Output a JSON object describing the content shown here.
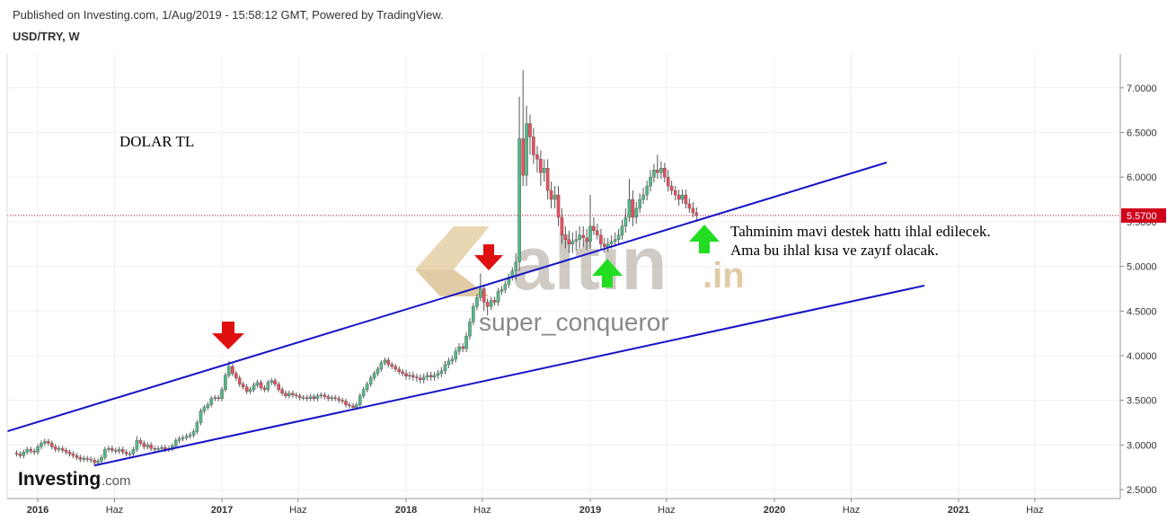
{
  "chart_data": {
    "type": "candlestick",
    "source": "Published on Investing.com, 1/Aug/2019 - 15:58:12 GMT, Powered by TradingView.",
    "title": "USD/TRY, W",
    "annotation_left": "DOLAR TL",
    "annotation_lines": [
      "Tahminim mavi destek hattı ihlal edilecek.",
      "Ama bu ihlal kısa ve zayıf olacak."
    ],
    "watermark_brand": "altın",
    "watermark_tld": ".in",
    "watermark_user": "super_conqueror",
    "logo_main": "Investing",
    "logo_tld": ".com",
    "up_color": "#53b987",
    "down_color": "#eb4d5c",
    "xlim": [
      2015.834,
      2021.878
    ],
    "ylim": [
      2.4,
      7.38
    ],
    "grid": true,
    "xticks": [
      2016,
      {
        "value": 2016.417,
        "label": "Haz"
      },
      2017,
      {
        "value": 2017.414,
        "label": "Haz"
      },
      2018,
      {
        "value": 2018.414,
        "label": "Haz"
      },
      2019,
      {
        "value": 2019.414,
        "label": "Haz"
      },
      2020,
      {
        "value": 2020.417,
        "label": "Haz"
      },
      2021,
      {
        "value": 2021.414,
        "label": "Haz"
      }
    ],
    "yticks": [
      {
        "value": 2.5,
        "label": "2.5000"
      },
      {
        "value": 3,
        "label": "3.0000"
      },
      {
        "value": 3.5,
        "label": "3.5000"
      },
      {
        "value": 4,
        "label": "4.0000"
      },
      {
        "value": 4.5,
        "label": "4.5000"
      },
      {
        "value": 5,
        "label": "5.0000"
      },
      {
        "value": 5.5,
        "label": "5.5000"
      },
      {
        "value": 6,
        "label": "6.0000"
      },
      {
        "value": 6.5,
        "label": "6.5000"
      },
      {
        "value": 7,
        "label": "7.0000"
      }
    ],
    "last_price": {
      "value": 5.57,
      "label": "5.5700"
    },
    "last_price_color": "#d0021b",
    "trendlines": [
      {
        "x": [
          2015.834,
          2020.61
        ],
        "y": [
          3.153,
          6.164
        ],
        "color": "#1414c8"
      },
      {
        "x": [
          2016.307,
          2020.815
        ],
        "y": [
          2.77,
          4.785
        ],
        "color": "#1414c8"
      }
    ],
    "x": [
      2015.885,
      2015.904,
      2015.923,
      2015.942,
      2015.962,
      2015.981,
      2016,
      2016.019,
      2016.038,
      2016.058,
      2016.077,
      2016.096,
      2016.115,
      2016.135,
      2016.154,
      2016.173,
      2016.192,
      2016.212,
      2016.231,
      2016.25,
      2016.269,
      2016.288,
      2016.308,
      2016.327,
      2016.346,
      2016.365,
      2016.385,
      2016.404,
      2016.423,
      2016.442,
      2016.462,
      2016.481,
      2016.5,
      2016.519,
      2016.538,
      2016.558,
      2016.577,
      2016.596,
      2016.615,
      2016.635,
      2016.654,
      2016.673,
      2016.692,
      2016.712,
      2016.731,
      2016.75,
      2016.769,
      2016.788,
      2016.808,
      2016.827,
      2016.846,
      2016.865,
      2016.885,
      2016.904,
      2016.923,
      2016.942,
      2016.962,
      2016.981,
      2017,
      2017.019,
      2017.038,
      2017.058,
      2017.077,
      2017.096,
      2017.115,
      2017.135,
      2017.154,
      2017.173,
      2017.192,
      2017.212,
      2017.231,
      2017.25,
      2017.269,
      2017.288,
      2017.308,
      2017.327,
      2017.346,
      2017.365,
      2017.385,
      2017.404,
      2017.423,
      2017.442,
      2017.462,
      2017.481,
      2017.5,
      2017.519,
      2017.538,
      2017.558,
      2017.577,
      2017.596,
      2017.615,
      2017.635,
      2017.654,
      2017.673,
      2017.692,
      2017.712,
      2017.731,
      2017.75,
      2017.769,
      2017.788,
      2017.808,
      2017.827,
      2017.846,
      2017.865,
      2017.885,
      2017.904,
      2017.923,
      2017.942,
      2017.962,
      2017.981,
      2018,
      2018.019,
      2018.038,
      2018.058,
      2018.077,
      2018.096,
      2018.115,
      2018.135,
      2018.154,
      2018.173,
      2018.192,
      2018.212,
      2018.231,
      2018.25,
      2018.269,
      2018.288,
      2018.308,
      2018.327,
      2018.346,
      2018.365,
      2018.385,
      2018.404,
      2018.423,
      2018.442,
      2018.462,
      2018.481,
      2018.5,
      2018.519,
      2018.538,
      2018.558,
      2018.577,
      2018.596,
      2018.615,
      2018.635,
      2018.654,
      2018.673,
      2018.692,
      2018.712,
      2018.731,
      2018.75,
      2018.769,
      2018.788,
      2018.808,
      2018.827,
      2018.846,
      2018.865,
      2018.885,
      2018.904,
      2018.923,
      2018.942,
      2018.962,
      2018.981,
      2019,
      2019.019,
      2019.038,
      2019.058,
      2019.077,
      2019.096,
      2019.115,
      2019.135,
      2019.154,
      2019.173,
      2019.192,
      2019.212,
      2019.231,
      2019.25,
      2019.269,
      2019.288,
      2019.308,
      2019.327,
      2019.346,
      2019.365,
      2019.385,
      2019.404,
      2019.423,
      2019.442,
      2019.462,
      2019.481,
      2019.5,
      2019.519,
      2019.538,
      2019.558,
      2019.577
    ],
    "open": [
      2.91,
      2.9,
      2.88,
      2.92,
      2.95,
      2.93,
      2.92,
      2.98,
      3.02,
      3.04,
      3.02,
      2.98,
      2.95,
      2.96,
      2.94,
      2.92,
      2.9,
      2.88,
      2.86,
      2.84,
      2.85,
      2.84,
      2.83,
      2.8,
      2.82,
      2.86,
      2.95,
      2.96,
      2.94,
      2.93,
      2.95,
      2.92,
      2.9,
      2.9,
      2.95,
      3.05,
      3.02,
      2.98,
      3.0,
      2.96,
      2.95,
      2.96,
      2.97,
      2.95,
      2.96,
      2.99,
      3.05,
      3.07,
      3.08,
      3.1,
      3.11,
      3.15,
      3.25,
      3.38,
      3.42,
      3.45,
      3.52,
      3.53,
      3.52,
      3.62,
      3.78,
      3.88,
      3.8,
      3.75,
      3.68,
      3.65,
      3.6,
      3.62,
      3.67,
      3.7,
      3.64,
      3.62,
      3.7,
      3.72,
      3.68,
      3.62,
      3.58,
      3.55,
      3.58,
      3.56,
      3.55,
      3.53,
      3.53,
      3.52,
      3.54,
      3.52,
      3.55,
      3.56,
      3.54,
      3.52,
      3.53,
      3.52,
      3.5,
      3.49,
      3.45,
      3.44,
      3.42,
      3.45,
      3.55,
      3.62,
      3.68,
      3.75,
      3.8,
      3.85,
      3.92,
      3.95,
      3.9,
      3.88,
      3.85,
      3.82,
      3.8,
      3.77,
      3.78,
      3.76,
      3.75,
      3.73,
      3.76,
      3.78,
      3.76,
      3.78,
      3.8,
      3.83,
      3.9,
      3.94,
      3.96,
      4.05,
      4.1,
      4.08,
      4.22,
      4.38,
      4.55,
      4.65,
      4.75,
      4.6,
      4.55,
      4.62,
      4.6,
      4.72,
      4.74,
      4.8,
      4.88,
      4.95,
      5.05,
      6.43,
      6.02,
      6.6,
      6.45,
      6.25,
      6.2,
      6.05,
      6.1,
      5.85,
      5.75,
      5.8,
      5.55,
      5.35,
      5.3,
      5.25,
      5.28,
      5.3,
      5.35,
      5.32,
      5.28,
      5.45,
      5.4,
      5.35,
      5.25,
      5.22,
      5.25,
      5.28,
      5.3,
      5.35,
      5.45,
      5.55,
      5.75,
      5.55,
      5.65,
      5.75,
      5.8,
      5.9,
      6.0,
      6.08,
      6.05,
      6.1,
      6.0,
      5.9,
      5.85,
      5.8,
      5.75,
      5.8,
      5.7,
      5.65,
      5.6
    ],
    "high": [
      2.94,
      2.93,
      2.95,
      2.98,
      2.98,
      2.96,
      3.01,
      3.05,
      3.07,
      3.07,
      3.05,
      3.01,
      2.99,
      2.99,
      2.97,
      2.95,
      2.93,
      2.91,
      2.89,
      2.88,
      2.88,
      2.87,
      2.86,
      2.85,
      2.89,
      2.98,
      2.99,
      2.99,
      2.97,
      2.98,
      2.98,
      2.95,
      2.93,
      2.98,
      3.1,
      3.08,
      3.05,
      3.03,
      3.03,
      2.99,
      2.99,
      3.0,
      3.0,
      2.99,
      3.02,
      3.08,
      3.1,
      3.11,
      3.13,
      3.14,
      3.18,
      3.28,
      3.41,
      3.45,
      3.48,
      3.55,
      3.56,
      3.56,
      3.65,
      3.81,
      3.94,
      3.91,
      3.83,
      3.78,
      3.71,
      3.68,
      3.65,
      3.7,
      3.73,
      3.73,
      3.67,
      3.73,
      3.75,
      3.75,
      3.71,
      3.65,
      3.61,
      3.61,
      3.61,
      3.59,
      3.58,
      3.56,
      3.56,
      3.57,
      3.57,
      3.58,
      3.59,
      3.59,
      3.57,
      3.56,
      3.56,
      3.55,
      3.53,
      3.52,
      3.48,
      3.47,
      3.48,
      3.58,
      3.65,
      3.71,
      3.78,
      3.83,
      3.88,
      3.95,
      3.98,
      3.98,
      3.93,
      3.91,
      3.88,
      3.85,
      3.84,
      3.82,
      3.82,
      3.8,
      3.79,
      3.8,
      3.82,
      3.82,
      3.82,
      3.84,
      3.87,
      3.94,
      3.98,
      4.0,
      4.09,
      4.14,
      4.14,
      4.26,
      4.42,
      4.59,
      4.69,
      4.92,
      4.79,
      4.64,
      4.66,
      4.66,
      4.76,
      4.78,
      4.84,
      4.92,
      4.99,
      5.15,
      6.9,
      7.2,
      6.8,
      6.7,
      6.55,
      6.35,
      6.3,
      6.2,
      6.2,
      5.95,
      5.9,
      5.9,
      5.65,
      5.45,
      5.4,
      5.38,
      5.4,
      5.45,
      5.45,
      5.42,
      5.8,
      5.55,
      5.48,
      5.42,
      5.32,
      5.32,
      5.35,
      5.38,
      5.42,
      5.52,
      5.65,
      5.98,
      5.85,
      5.72,
      5.82,
      5.88,
      5.96,
      6.08,
      6.15,
      6.25,
      6.18,
      6.16,
      6.08,
      5.96,
      5.9,
      5.86,
      5.86,
      5.86,
      5.76,
      5.72,
      5.66
    ],
    "low": [
      2.87,
      2.85,
      2.85,
      2.89,
      2.9,
      2.89,
      2.89,
      2.95,
      2.99,
      2.99,
      2.95,
      2.92,
      2.92,
      2.91,
      2.89,
      2.87,
      2.85,
      2.83,
      2.81,
      2.81,
      2.81,
      2.8,
      2.77,
      2.77,
      2.79,
      2.83,
      2.92,
      2.91,
      2.9,
      2.9,
      2.89,
      2.87,
      2.87,
      2.87,
      2.92,
      2.99,
      2.95,
      2.95,
      2.93,
      2.92,
      2.92,
      2.93,
      2.92,
      2.92,
      2.93,
      2.96,
      3.02,
      3.04,
      3.05,
      3.07,
      3.08,
      3.12,
      3.22,
      3.35,
      3.39,
      3.42,
      3.49,
      3.49,
      3.49,
      3.59,
      3.75,
      3.77,
      3.72,
      3.65,
      3.62,
      3.57,
      3.57,
      3.59,
      3.64,
      3.61,
      3.59,
      3.59,
      3.67,
      3.65,
      3.59,
      3.55,
      3.52,
      3.52,
      3.53,
      3.52,
      3.5,
      3.5,
      3.49,
      3.49,
      3.49,
      3.49,
      3.52,
      3.51,
      3.49,
      3.49,
      3.49,
      3.47,
      3.46,
      3.42,
      3.41,
      3.39,
      3.39,
      3.42,
      3.52,
      3.59,
      3.65,
      3.72,
      3.77,
      3.82,
      3.89,
      3.87,
      3.85,
      3.82,
      3.79,
      3.77,
      3.73,
      3.73,
      3.72,
      3.71,
      3.69,
      3.69,
      3.72,
      3.72,
      3.72,
      3.74,
      3.76,
      3.79,
      3.86,
      3.9,
      3.92,
      4.01,
      4.04,
      4.04,
      4.18,
      4.34,
      4.51,
      4.61,
      4.5,
      4.45,
      4.51,
      4.56,
      4.56,
      4.68,
      4.7,
      4.76,
      4.84,
      4.85,
      4.95,
      5.9,
      5.9,
      6.25,
      6.15,
      6.05,
      5.9,
      5.95,
      5.75,
      5.65,
      5.65,
      5.45,
      5.25,
      5.2,
      5.15,
      5.15,
      5.18,
      5.2,
      5.22,
      5.18,
      5.2,
      5.35,
      5.3,
      5.18,
      5.15,
      5.16,
      5.2,
      5.22,
      5.25,
      5.3,
      5.38,
      5.5,
      5.45,
      5.48,
      5.6,
      5.7,
      5.74,
      5.84,
      5.94,
      5.98,
      5.98,
      5.94,
      5.84,
      5.8,
      5.74,
      5.68,
      5.7,
      5.65,
      5.6,
      5.55,
      5.5
    ],
    "close": [
      2.9,
      2.88,
      2.92,
      2.95,
      2.93,
      2.92,
      2.98,
      3.02,
      3.04,
      3.02,
      2.98,
      2.95,
      2.96,
      2.94,
      2.92,
      2.9,
      2.88,
      2.86,
      2.84,
      2.85,
      2.84,
      2.83,
      2.8,
      2.82,
      2.86,
      2.95,
      2.96,
      2.94,
      2.93,
      2.95,
      2.92,
      2.9,
      2.9,
      2.95,
      3.05,
      3.02,
      2.98,
      3.0,
      2.96,
      2.95,
      2.96,
      2.97,
      2.95,
      2.96,
      2.99,
      3.05,
      3.07,
      3.08,
      3.1,
      3.11,
      3.15,
      3.25,
      3.38,
      3.42,
      3.45,
      3.52,
      3.53,
      3.52,
      3.62,
      3.78,
      3.88,
      3.8,
      3.75,
      3.68,
      3.65,
      3.6,
      3.62,
      3.67,
      3.7,
      3.64,
      3.62,
      3.7,
      3.72,
      3.68,
      3.62,
      3.58,
      3.55,
      3.58,
      3.56,
      3.55,
      3.53,
      3.53,
      3.52,
      3.54,
      3.52,
      3.55,
      3.56,
      3.54,
      3.52,
      3.53,
      3.52,
      3.5,
      3.49,
      3.45,
      3.44,
      3.42,
      3.45,
      3.55,
      3.62,
      3.68,
      3.75,
      3.8,
      3.85,
      3.92,
      3.95,
      3.9,
      3.88,
      3.85,
      3.82,
      3.8,
      3.77,
      3.78,
      3.76,
      3.75,
      3.73,
      3.76,
      3.78,
      3.76,
      3.78,
      3.8,
      3.83,
      3.9,
      3.94,
      3.96,
      4.05,
      4.1,
      4.08,
      4.22,
      4.38,
      4.55,
      4.65,
      4.75,
      4.6,
      4.55,
      4.62,
      4.6,
      4.72,
      4.74,
      4.8,
      4.88,
      4.95,
      5.05,
      6.43,
      6.02,
      6.6,
      6.45,
      6.25,
      6.2,
      6.05,
      6.1,
      5.85,
      5.75,
      5.8,
      5.55,
      5.35,
      5.3,
      5.25,
      5.28,
      5.3,
      5.35,
      5.32,
      5.28,
      5.45,
      5.4,
      5.35,
      5.25,
      5.22,
      5.25,
      5.28,
      5.3,
      5.35,
      5.45,
      5.55,
      5.75,
      5.55,
      5.65,
      5.75,
      5.8,
      5.9,
      6.0,
      6.08,
      6.05,
      6.1,
      6.0,
      5.9,
      5.85,
      5.8,
      5.75,
      5.8,
      5.7,
      5.65,
      5.6,
      5.57
    ]
  }
}
